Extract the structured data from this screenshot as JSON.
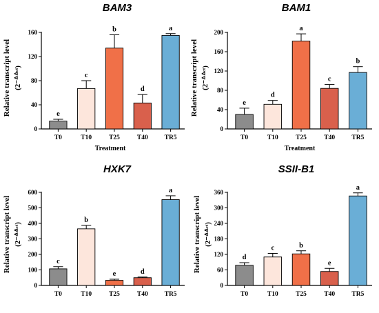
{
  "colors": {
    "T0": "#8c8c8c",
    "T10": "#fde6dc",
    "T25": "#f07048",
    "T40": "#d9604c",
    "TR5": "#6aaed6",
    "axis": "#000000"
  },
  "chart_data": [
    {
      "type": "bar",
      "title": "BAM3",
      "categories": [
        "T0",
        "T10",
        "T25",
        "T40",
        "TR5"
      ],
      "values": [
        13,
        67,
        134,
        43,
        155
      ],
      "errors": [
        3,
        13,
        22,
        14,
        3
      ],
      "labels": [
        "e",
        "c",
        "b",
        "d",
        "a"
      ],
      "ylabel": "Relative transcript level",
      "ylabel_formula": "(2⁻ᐞᐞᶜᵗ)",
      "xlabel": "Treatment",
      "ylim": [
        0,
        160
      ],
      "yticks": [
        0,
        40,
        80,
        120,
        160
      ]
    },
    {
      "type": "bar",
      "title": "BAM1",
      "categories": [
        "T0",
        "T10",
        "T25",
        "T40",
        "TR5"
      ],
      "values": [
        30,
        51,
        182,
        84,
        117
      ],
      "errors": [
        13,
        8,
        15,
        8,
        12
      ],
      "labels": [
        "e",
        "d",
        "a",
        "c",
        "b"
      ],
      "ylabel": "Relative transcript level",
      "ylabel_formula": "(2⁻ᐞᐞᶜᵗ)",
      "xlabel": "Treatment",
      "ylim": [
        0,
        200
      ],
      "yticks": [
        0,
        40,
        80,
        120,
        160,
        200
      ]
    },
    {
      "type": "bar",
      "title": "HXK7",
      "categories": [
        "T0",
        "T10",
        "T25",
        "T40",
        "TR5"
      ],
      "values": [
        107,
        365,
        33,
        50,
        553
      ],
      "errors": [
        14,
        22,
        7,
        4,
        25
      ],
      "labels": [
        "c",
        "b",
        "e",
        "d",
        "a"
      ],
      "ylabel": "Relative transcript level",
      "ylabel_formula": "(2⁻ᐞᐞᶜᵗ)",
      "xlabel": "",
      "ylim": [
        0,
        600
      ],
      "yticks": [
        0,
        100,
        200,
        300,
        400,
        500,
        600
      ]
    },
    {
      "type": "bar",
      "title": "SSII-B1",
      "categories": [
        "T0",
        "T10",
        "T25",
        "T40",
        "TR5"
      ],
      "values": [
        78,
        110,
        122,
        54,
        346
      ],
      "errors": [
        10,
        14,
        12,
        12,
        12
      ],
      "labels": [
        "d",
        "c",
        "b",
        "e",
        "a"
      ],
      "ylabel": "Relative transcript level",
      "ylabel_formula": "(2⁻ᐞᐞᶜᵗ)",
      "xlabel": "",
      "ylim": [
        0,
        360
      ],
      "yticks": [
        0,
        60,
        120,
        180,
        240,
        300,
        360
      ]
    }
  ]
}
